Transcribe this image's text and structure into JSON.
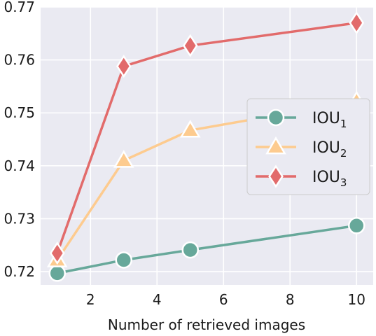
{
  "chart_data": {
    "type": "line",
    "title": "",
    "xlabel": "Number of retrieved images",
    "ylabel": "",
    "x": [
      1,
      3,
      5,
      10
    ],
    "xlim": [
      0.5,
      10.5
    ],
    "ylim": [
      0.7175,
      0.77
    ],
    "xticks": [
      2,
      4,
      6,
      8,
      10
    ],
    "yticks": [
      0.72,
      0.73,
      0.74,
      0.75,
      0.76,
      0.77
    ],
    "grid": true,
    "legend_position": "center-right",
    "series": [
      {
        "name": "IOU",
        "subscript": "1",
        "marker": "circle",
        "color": "#67a89a",
        "values": [
          0.7197,
          0.7222,
          0.7241,
          0.7287
        ]
      },
      {
        "name": "IOU",
        "subscript": "2",
        "marker": "triangle",
        "color": "#fdcb8f",
        "values": [
          0.7222,
          0.741,
          0.7467,
          0.7522
        ]
      },
      {
        "name": "IOU",
        "subscript": "3",
        "marker": "diamond",
        "color": "#e26b6b",
        "values": [
          0.7235,
          0.7588,
          0.7627,
          0.767
        ]
      }
    ]
  }
}
